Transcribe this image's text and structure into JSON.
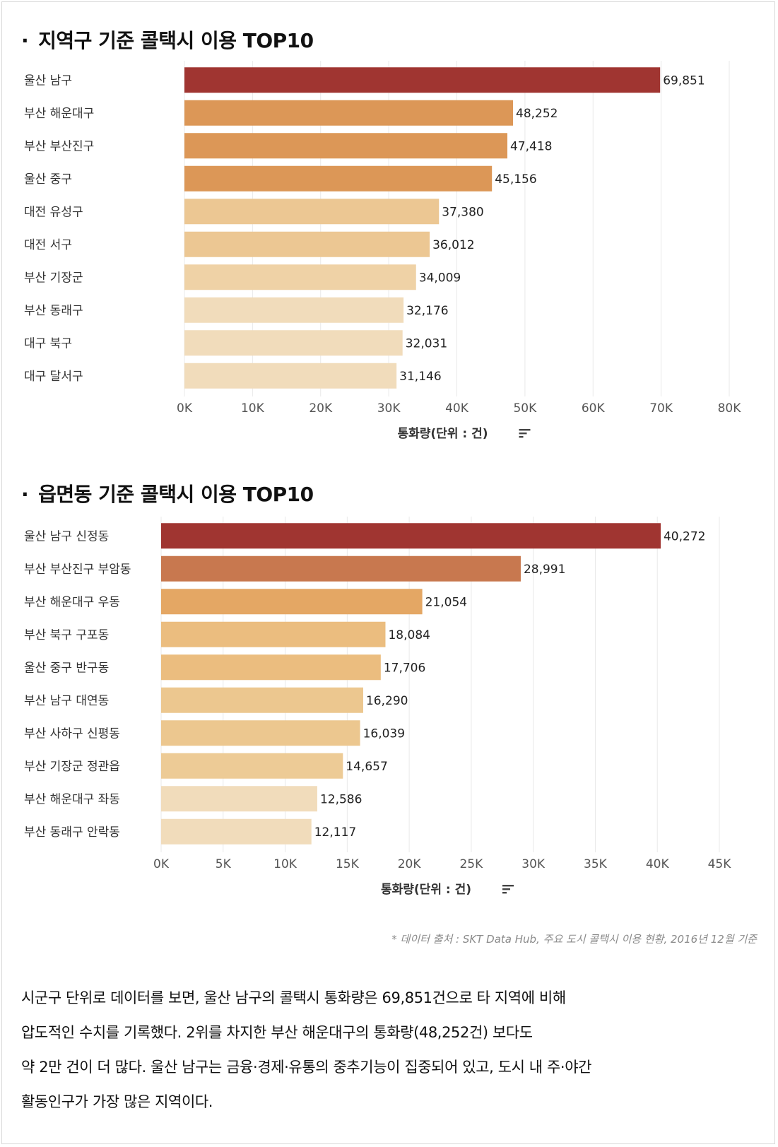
{
  "chart_data": [
    {
      "type": "bar",
      "orientation": "horizontal",
      "title": "지역구 기준 콜택시 이용 TOP10",
      "categories": [
        "울산 남구",
        "부산 해운대구",
        "부산 부산진구",
        "울산 중구",
        "대전 유성구",
        "대전 서구",
        "부산 기장군",
        "부산 동래구",
        "대구 북구",
        "대구 달서구"
      ],
      "values": [
        69851,
        48252,
        47418,
        45156,
        37380,
        36012,
        34009,
        32176,
        32031,
        31146
      ],
      "value_labels": [
        "69,851",
        "48,252",
        "47,418",
        "45,156",
        "37,380",
        "36,012",
        "34,009",
        "32,176",
        "32,031",
        "31,146"
      ],
      "colors": [
        "#a03531",
        "#dc9757",
        "#dc9757",
        "#dc9757",
        "#ecc793",
        "#ecc793",
        "#efd2a6",
        "#f1dcbb",
        "#f1dcbb",
        "#f1dcbb"
      ],
      "xlim": [
        0,
        80000
      ],
      "xticks": [
        0,
        10000,
        20000,
        30000,
        40000,
        50000,
        60000,
        70000,
        80000
      ],
      "xtick_labels": [
        "0K",
        "10K",
        "20K",
        "30K",
        "40K",
        "50K",
        "60K",
        "70K",
        "80K"
      ],
      "xlabel": "통화량(단위 : 건)",
      "grid": true,
      "sort_icon": "sort-descending-icon"
    },
    {
      "type": "bar",
      "orientation": "horizontal",
      "title": "읍면동 기준 콜택시 이용 TOP10",
      "categories": [
        "울산 남구 신정동",
        "부산 부산진구 부암동",
        "부산 해운대구 우동",
        "부산 북구 구포동",
        "울산 중구 반구동",
        "부산 남구 대연동",
        "부산 사하구 신평동",
        "부산 기장군 정관읍",
        "부산 해운대구 좌동",
        "부산 동래구 안락동"
      ],
      "values": [
        40272,
        28991,
        21054,
        18084,
        17706,
        16290,
        16039,
        14657,
        12586,
        12117
      ],
      "value_labels": [
        "40,272",
        "28,991",
        "21,054",
        "18,084",
        "17,706",
        "16,290",
        "16,039",
        "14,657",
        "12,586",
        "12,117"
      ],
      "colors": [
        "#a03531",
        "#c8784f",
        "#e4a764",
        "#ebbd7f",
        "#ebbd7f",
        "#ecc78f",
        "#ecc78f",
        "#edcb96",
        "#f1dcbb",
        "#f1dcbb"
      ],
      "xlim": [
        0,
        45000
      ],
      "xticks": [
        0,
        5000,
        10000,
        15000,
        20000,
        25000,
        30000,
        35000,
        40000,
        45000
      ],
      "xtick_labels": [
        "0K",
        "5K",
        "10K",
        "15K",
        "20K",
        "25K",
        "30K",
        "35K",
        "40K",
        "45K"
      ],
      "xlabel": "통화량(단위 : 건)",
      "grid": true,
      "sort_icon": "sort-descending-icon"
    }
  ],
  "titles": {
    "bullet": "·",
    "chart1": "지역구 기준 콜택시 이용 TOP10",
    "chart2": "읍면동 기준 콜택시 이용 TOP10"
  },
  "source_note": "* 데이터 출처 : SKT Data Hub, 주요 도시 콜택시 이용 현황, 2016년 12월 기준",
  "paragraph": {
    "line1": "시군구 단위로 데이터를 보면, 울산 남구의 콜택시 통화량은 69,851건으로 타 지역에 비해",
    "line2": "압도적인 수치를 기록했다. 2위를 차지한 부산 해운대구의 통화량(48,252건) 보다도",
    "line3": "약 2만 건이 더 많다. 울산 남구는 금융·경제·유통의 중추기능이 집중되어 있고, 도시 내 주·야간",
    "line4": "활동인구가 가장 많은 지역이다."
  }
}
